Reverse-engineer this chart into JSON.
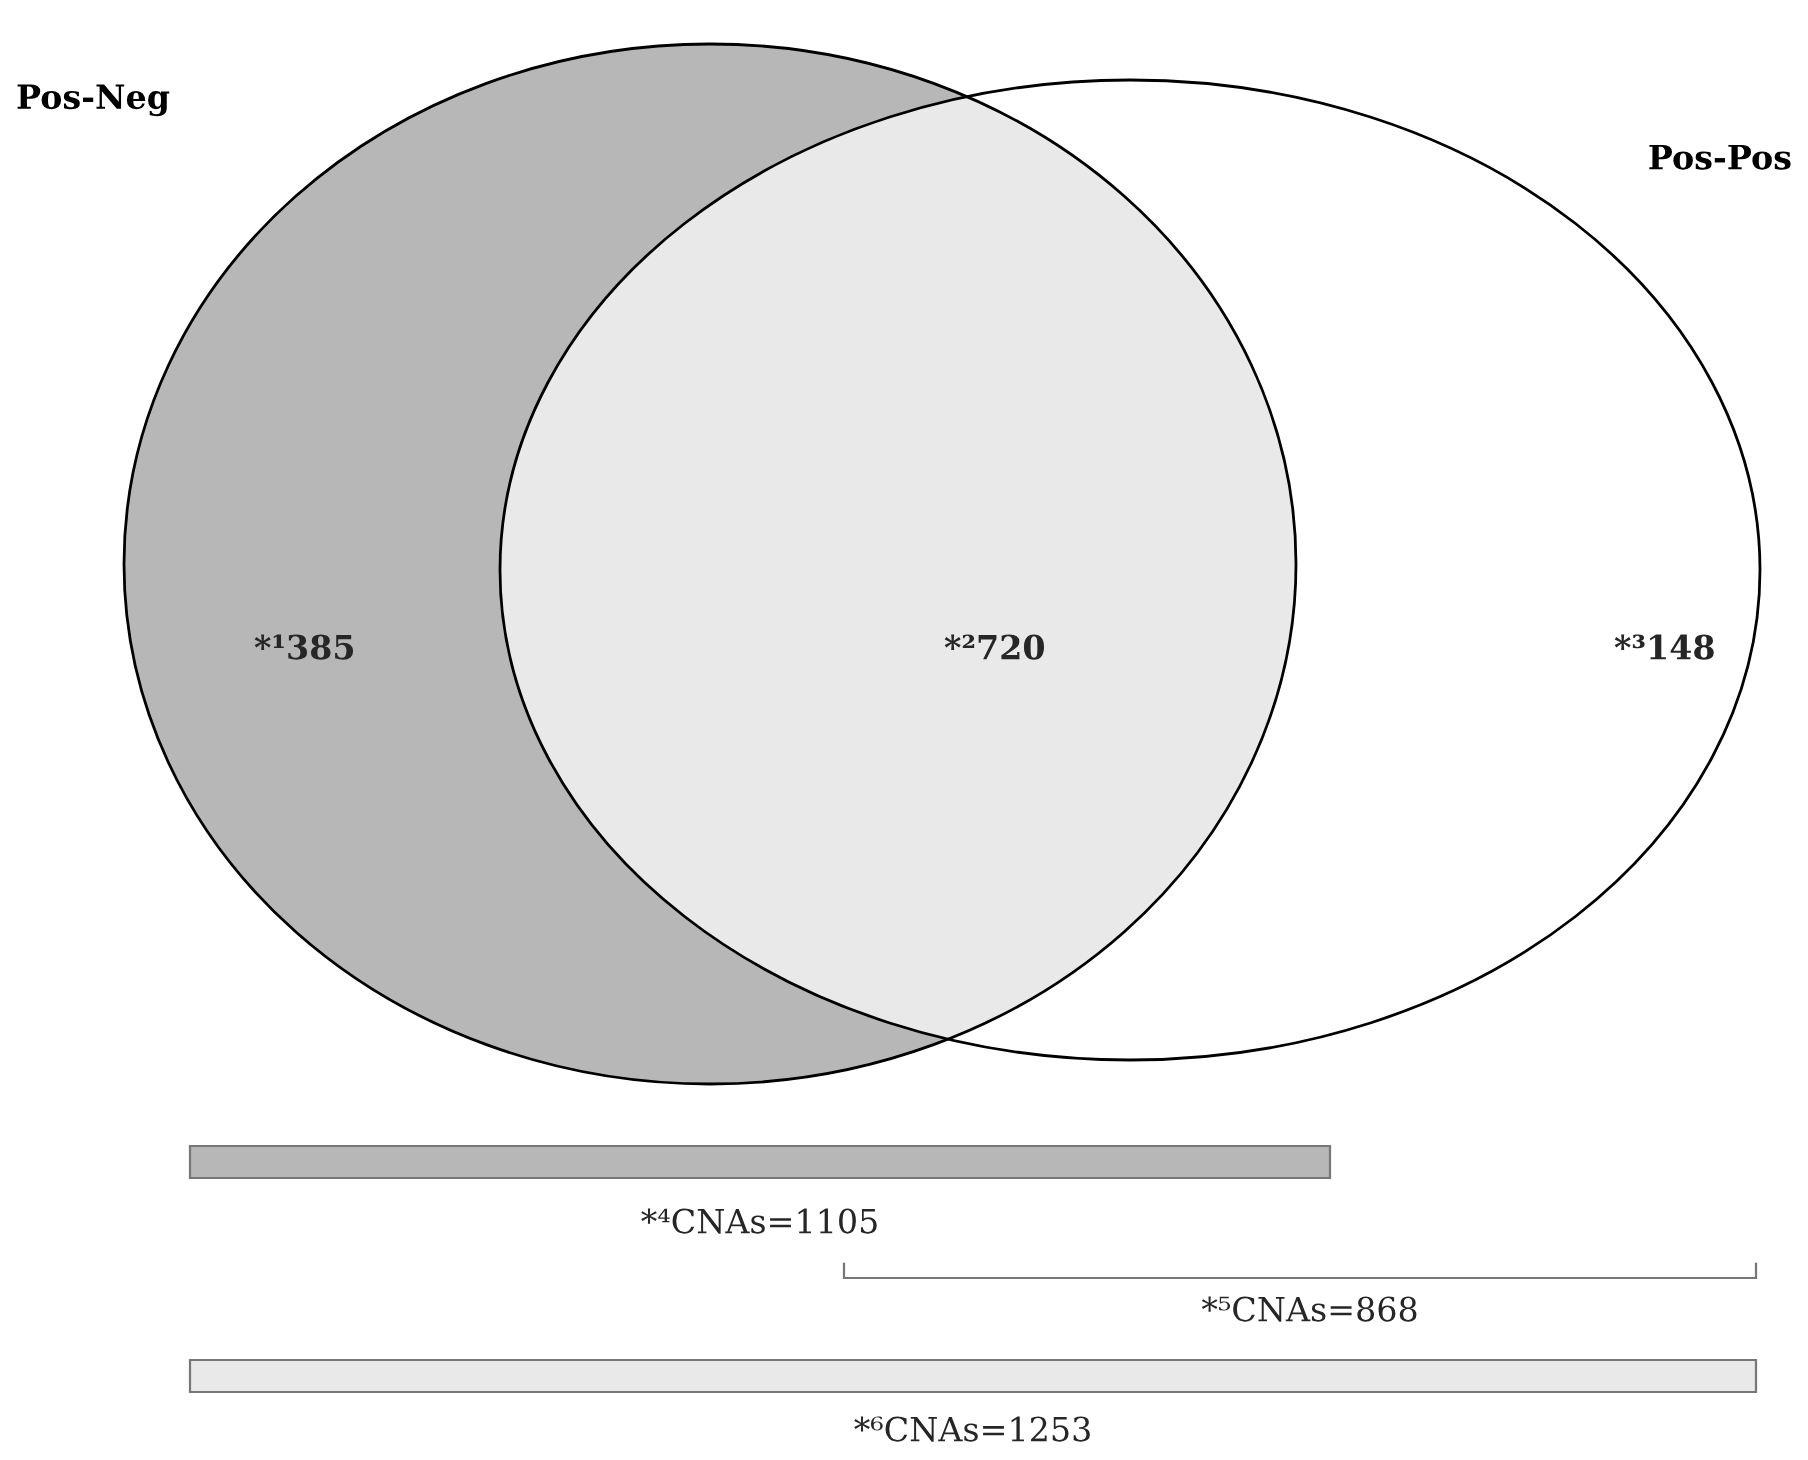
{
  "chart_data": {
    "type": "other",
    "categories": [
      "*¹",
      "*²",
      "*³"
    ],
    "values": [
      385,
      720,
      148
    ],
    "data_labels": true,
    "colors": [
      "#b7b7b7",
      "#e9e9e9",
      "#ffffff"
    ],
    "annotations": [
      "Pos-Neg",
      "Pos-Pos",
      "*⁴CNAs=1105",
      "*⁵CNAs=868",
      "*⁶CNAs=1253"
    ]
  }
}
